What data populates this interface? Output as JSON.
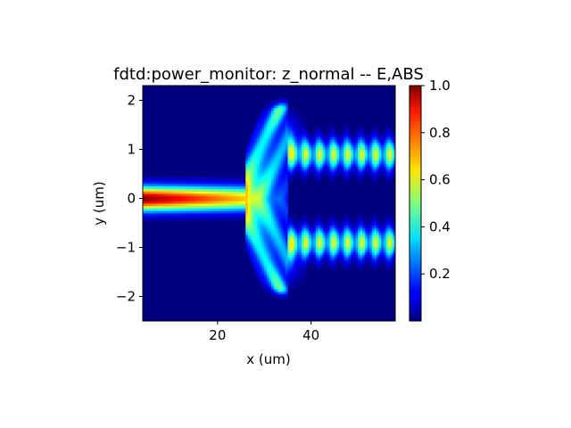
{
  "chart_data": {
    "type": "heatmap",
    "title": "fdtd:power_monitor: z_normal -- E,ABS",
    "xlabel": "x (um)",
    "ylabel": "y (um)",
    "xlim": [
      4,
      58
    ],
    "ylim": [
      -2.5,
      2.3
    ],
    "x_ticks": [
      20,
      40
    ],
    "y_ticks": [
      -2,
      -1,
      0,
      1,
      2
    ],
    "colormap": "jet",
    "colorbar": {
      "range": [
        0,
        1.0
      ],
      "ticks": [
        "0.2",
        "0.4",
        "0.6",
        "0.8",
        "1.0"
      ]
    },
    "field_description": {
      "input_waveguide": {
        "x_range": [
          4,
          26
        ],
        "y_center": 0,
        "peak_value": 1.0
      },
      "taper_region": {
        "x_range": [
          26,
          35
        ],
        "y_extent": [
          -1.8,
          1.8
        ],
        "value_range": [
          0.3,
          0.55
        ]
      },
      "output_waveguides": [
        {
          "x_range": [
            35,
            58
          ],
          "y_center": 0.9,
          "value_range": [
            0.4,
            0.6
          ]
        },
        {
          "x_range": [
            35,
            58
          ],
          "y_center": -0.9,
          "value_range": [
            0.4,
            0.6
          ]
        }
      ]
    },
    "grid": false,
    "legend": "colorbar-right"
  }
}
